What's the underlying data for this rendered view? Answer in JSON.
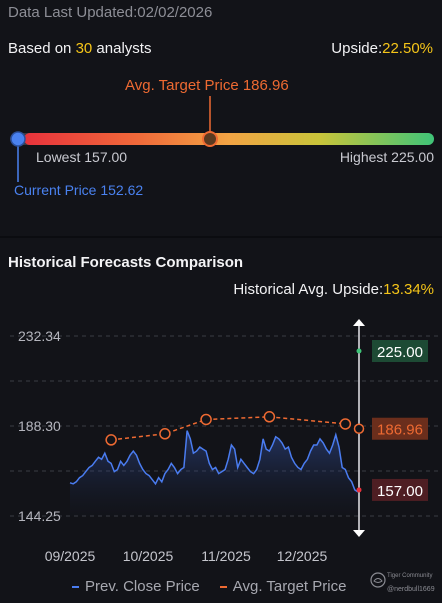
{
  "header": {
    "updated_label": "Data Last Updated:",
    "updated_date": "02/02/2026"
  },
  "summary": {
    "based_on_prefix": "Based on ",
    "analyst_count": "30",
    "based_on_suffix": " analysts",
    "upside_label": "Upside:",
    "upside_value": "22.50%"
  },
  "target_range": {
    "avg_target_label": "Avg. Target Price 186.96",
    "lowest_label": "Lowest 157.00",
    "highest_label": "Highest 225.00",
    "current_label": "Current Price 152.62",
    "low": 157.0,
    "high": 225.0,
    "avg": 186.96,
    "current": 152.62
  },
  "historical": {
    "title": "Historical Forecasts Comparison",
    "avg_upside_label": "Historical Avg. Upside:",
    "avg_upside_value": "13.34%"
  },
  "legend": {
    "close_label": "Prev. Close Price",
    "target_label": "Avg. Target Price"
  },
  "watermark": {
    "name": "Tiger Community",
    "handle": "@nerdbull1669"
  },
  "colors": {
    "close_line": "#4a7cf0",
    "target_line": "#ee6a32",
    "high_badge": "#1d4a34",
    "avg_badge": "#6b2e1c",
    "low_badge": "#4e1e23",
    "upside": "#f5c518"
  },
  "chart_data": {
    "type": "line",
    "x_ticks": [
      "09/2025",
      "10/2025",
      "11/2025",
      "12/2025"
    ],
    "y_ticks": [
      "232.34",
      "188.30",
      "144.25"
    ],
    "ylim": [
      144.25,
      232.34
    ],
    "series": [
      {
        "name": "Prev. Close Price",
        "values": [
          160.5,
          160,
          161,
          163,
          164,
          166,
          168,
          169,
          171,
          173,
          172,
          175,
          171,
          170,
          166,
          167,
          171,
          169,
          171,
          174,
          176,
          174,
          170,
          167,
          165,
          164,
          162,
          160,
          163,
          161,
          165,
          167,
          170,
          168,
          165,
          167,
          168,
          186,
          182,
          175,
          176,
          178,
          177,
          176,
          170,
          167,
          168,
          165,
          166,
          167,
          172,
          179,
          177,
          168,
          172,
          170,
          168,
          166,
          165,
          167,
          172,
          182,
          177,
          176,
          179,
          183,
          182,
          180,
          177,
          178,
          173,
          170,
          168,
          167,
          170,
          172,
          176,
          179,
          179,
          182,
          180,
          177,
          175,
          179,
          184,
          178,
          168,
          167,
          163,
          161,
          157,
          156
        ]
      },
      {
        "name": "Avg. Target Price",
        "x_index": [
          13,
          30,
          43,
          63,
          87
        ],
        "values": [
          181.5,
          184.5,
          191.5,
          192.8,
          189.3
        ]
      }
    ],
    "forecast": {
      "high": 225.0,
      "avg": 186.96,
      "low": 157.0,
      "high_label": "225.00",
      "avg_label": "186.96",
      "low_label": "157.00"
    }
  }
}
